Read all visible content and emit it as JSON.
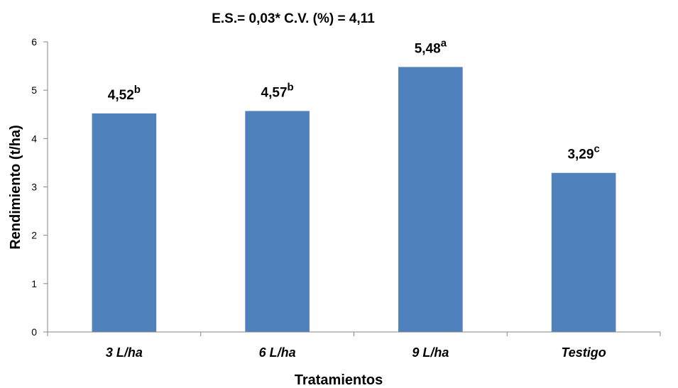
{
  "chart_data": {
    "type": "bar",
    "title": "E.S.= 0,03* C.V. (%) = 4,11",
    "xlabel": "Tratamientos",
    "ylabel": "Rendimiento (t/ha)",
    "ylim": [
      0,
      6
    ],
    "yticks": [
      "0",
      "1",
      "2",
      "3",
      "4",
      "5",
      "6"
    ],
    "grid": false,
    "legend": "none",
    "bar_color": "#4F81BD",
    "categories": [
      "3 L/ha",
      "6 L/ha",
      "9 L/ha",
      "Testigo"
    ],
    "values": [
      4.52,
      4.57,
      5.48,
      3.29
    ],
    "data_labels": [
      {
        "value": "4,52",
        "letter": "b"
      },
      {
        "value": "4,57",
        "letter": "b"
      },
      {
        "value": "5,48",
        "letter": "a"
      },
      {
        "value": "3,29",
        "letter": "c"
      }
    ]
  }
}
